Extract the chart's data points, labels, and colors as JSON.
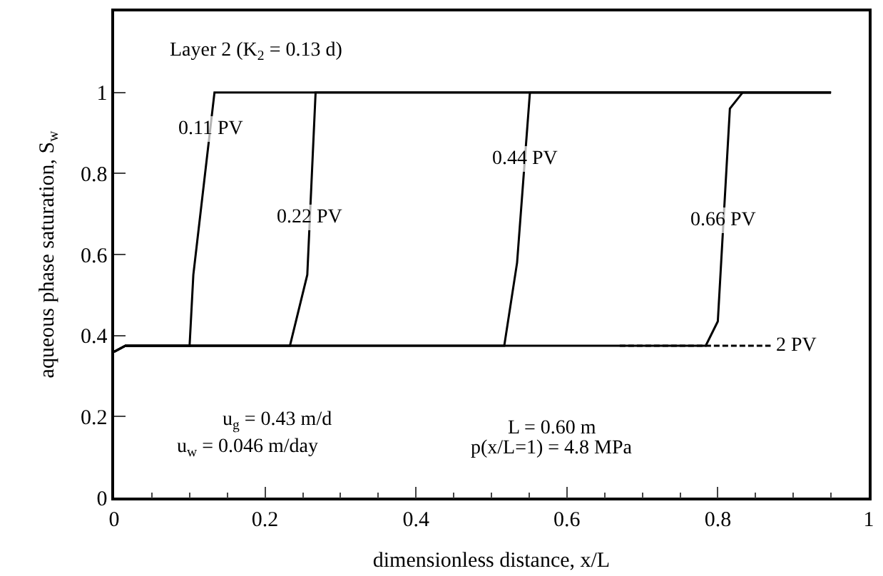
{
  "chart_data": {
    "type": "line",
    "xlabel": "dimensionless distance, x/L",
    "ylabel": "aqueous phase saturation, S$_{w}$",
    "xlim": [
      0,
      1
    ],
    "ylim": [
      0,
      1.2
    ],
    "xticks": [
      0,
      0.2,
      0.4,
      0.6,
      0.8,
      1
    ],
    "yticks": [
      0,
      0.2,
      0.4,
      0.6,
      0.8,
      1
    ],
    "legend": false,
    "marker": "none",
    "series": [
      {
        "name": "0.11 PV",
        "color": "#000000",
        "line_style": "solid",
        "x": [
          0,
          0.015,
          0.1,
          0.105,
          0.133,
          0.95
        ],
        "values": [
          0.36,
          0.375,
          0.375,
          0.55,
          1,
          1
        ]
      },
      {
        "name": "0.22 PV",
        "color": "#000000",
        "line_style": "solid",
        "x": [
          0,
          0.015,
          0.233,
          0.256,
          0.267,
          0.95
        ],
        "values": [
          0.36,
          0.375,
          0.375,
          0.55,
          1,
          1
        ]
      },
      {
        "name": "0.44 PV",
        "color": "#000000",
        "line_style": "solid",
        "x": [
          0,
          0.015,
          0.517,
          0.534,
          0.551,
          0.95
        ],
        "values": [
          0.36,
          0.375,
          0.375,
          0.58,
          1,
          1
        ]
      },
      {
        "name": "0.66 PV",
        "color": "#000000",
        "line_style": "solid",
        "x": [
          0,
          0.015,
          0.784,
          0.8,
          0.816,
          0.833,
          0.95
        ],
        "values": [
          0.36,
          0.375,
          0.375,
          0.435,
          0.96,
          1,
          1
        ]
      },
      {
        "name": "2 PV",
        "color": "#000000",
        "line_style": "dashed",
        "x": [
          0.67,
          0.87
        ],
        "values": [
          0.375,
          0.375
        ]
      }
    ],
    "annotations": [
      "Layer 2 (K$_{2}$ = 0.13 d)",
      "u$_{g}$ = 0.43 m/d",
      "u$_{w}$ = 0.046 m/day",
      "L = 0.60 m",
      "p(x/L=1) = 4.8 MPa"
    ]
  }
}
